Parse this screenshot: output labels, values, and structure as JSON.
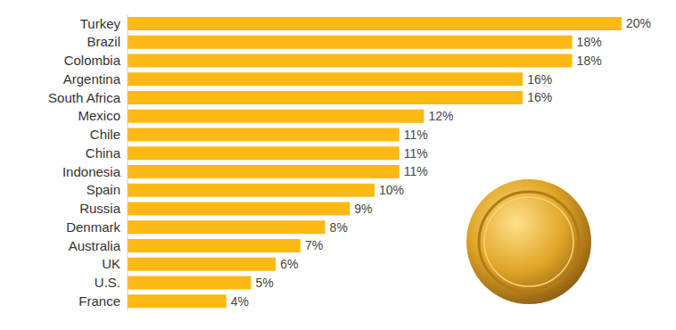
{
  "chart_data": {
    "type": "bar",
    "orientation": "horizontal",
    "categories": [
      "Turkey",
      "Brazil",
      "Colombia",
      "Argentina",
      "South Africa",
      "Mexico",
      "Chile",
      "China",
      "Indonesia",
      "Spain",
      "Russia",
      "Denmark",
      "Australia",
      "UK",
      "U.S.",
      "France"
    ],
    "values": [
      20,
      18,
      18,
      16,
      16,
      12,
      11,
      11,
      11,
      10,
      9,
      8,
      7,
      6,
      5,
      4
    ],
    "value_labels": [
      "20%",
      "18%",
      "18%",
      "16%",
      "16%",
      "12%",
      "11%",
      "11%",
      "11%",
      "10%",
      "9%",
      "8%",
      "7%",
      "6%",
      "5%",
      "4%"
    ],
    "color": "#fdb913",
    "data_labels": true,
    "tick_labels": "y",
    "grid": false
  }
}
